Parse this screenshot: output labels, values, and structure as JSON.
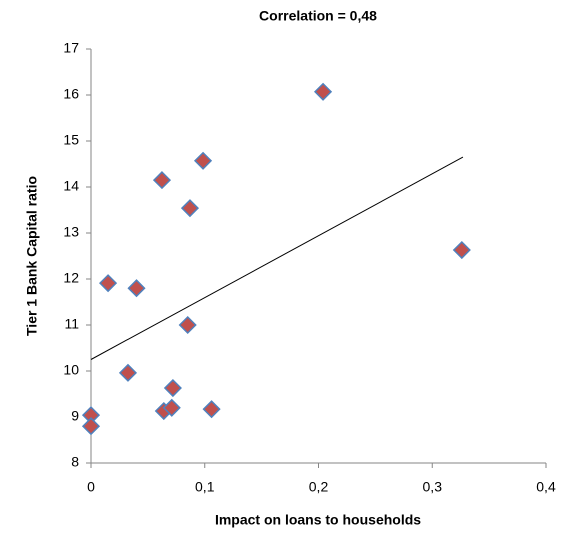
{
  "chart_data": {
    "type": "scatter",
    "title": "Correlation = 0,48",
    "x_label": "Impact on loans to households",
    "y_label": "Tier 1 Bank Capital ratio",
    "x": [
      0.204,
      0.326,
      0.0985,
      0.0624,
      0.087,
      0.015,
      0.04,
      0.085,
      0.0325,
      0.072,
      0.064,
      0.071,
      0.106,
      0,
      0
    ],
    "values": [
      16.07,
      12.63,
      14.57,
      14.15,
      13.54,
      11.91,
      11.8,
      11.0,
      9.96,
      9.63,
      9.13,
      9.2,
      9.17,
      9.04,
      8.8
    ],
    "color": "#c0504d",
    "edge_color": "#4f81bd",
    "trendline": {
      "x": [
        0,
        0.327
      ],
      "y": [
        10.25,
        14.65
      ],
      "color": "#000000"
    },
    "xlim": [
      0,
      0.4
    ],
    "xticks": [
      0,
      {
        "value": 0.1,
        "label": "0,1"
      },
      {
        "value": 0.2,
        "label": "0,2"
      },
      {
        "value": 0.3,
        "label": "0,3"
      },
      {
        "value": 0.4,
        "label": "0,4"
      }
    ],
    "ylim": [
      8,
      17
    ],
    "yticks": [
      8,
      9,
      10,
      11,
      12,
      13,
      14,
      15,
      16,
      17
    ],
    "grid": false
  }
}
